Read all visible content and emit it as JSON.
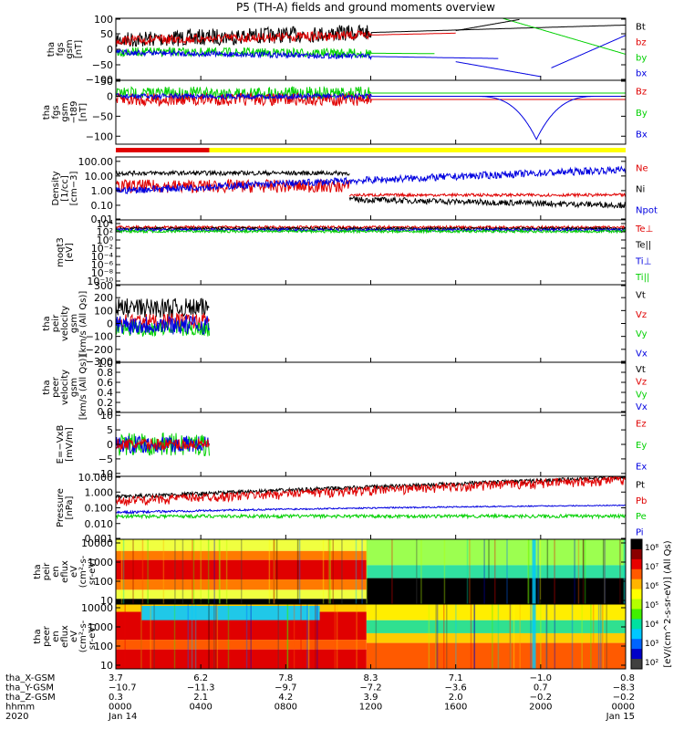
{
  "title": "P5 (TH-A) fields and ground moments overview",
  "colors": {
    "black": "#000000",
    "red": "#e00000",
    "green": "#00d000",
    "blue": "#0000e0",
    "bar_red": "#e00000",
    "bar_yellow": "#ffff00"
  },
  "chart_data": [
    {
      "type": "line",
      "panel": "fgs_gsm",
      "ylabel": [
        "tha",
        "fgs",
        "gsm",
        "[nT]"
      ],
      "ylim": [
        -100,
        100
      ],
      "yticks": [
        "100",
        "50",
        "0",
        "−50",
        "−100"
      ],
      "ytick_values": [
        100,
        50,
        0,
        -50,
        -100
      ],
      "legend": [
        {
          "label": "Bt",
          "color": "black"
        },
        {
          "label": "bz",
          "color": "red"
        },
        {
          "label": "by",
          "color": "green"
        },
        {
          "label": "bx",
          "color": "blue"
        }
      ]
    },
    {
      "type": "line",
      "panel": "fgs_gsm_d",
      "ylabel": [
        "tha",
        "fgs",
        "gsm",
        "−t89",
        "[nT]"
      ],
      "ylim": [
        -120,
        40
      ],
      "yticks": [
        "50",
        "0",
        "−50",
        "−100"
      ],
      "ytick_values": [
        50,
        0,
        -50,
        -100
      ],
      "legend": [
        {
          "label": "Bz",
          "color": "red"
        },
        {
          "label": "By",
          "color": "green"
        },
        {
          "label": "Bx",
          "color": "blue"
        }
      ]
    },
    {
      "type": "line",
      "panel": "density",
      "ylabel": [
        "Density",
        "[1/cc]",
        "[cm−3]"
      ],
      "yscale": "log",
      "ylim": [
        0.01,
        200
      ],
      "yticks": [
        "100.00",
        "10.00",
        "1.00",
        "0.10",
        "0.01"
      ],
      "ytick_values": [
        100,
        10,
        1,
        0.1,
        0.01
      ],
      "legend": [
        {
          "label": "Ne",
          "color": "red"
        },
        {
          "label": "Ni",
          "color": "black"
        },
        {
          "label": "Npot",
          "color": "blue"
        }
      ]
    },
    {
      "type": "line",
      "panel": "temperature",
      "ylabel": [
        "moqt3",
        "[eV]"
      ],
      "yscale": "log",
      "yticks": [
        "10⁴",
        "10²",
        "10⁰",
        "10⁻²",
        "10⁻⁴",
        "10⁻⁶",
        "10⁻⁸",
        "10⁻¹⁰"
      ],
      "legend": [
        {
          "label": "Te⊥",
          "color": "red"
        },
        {
          "label": "Te||",
          "color": "black"
        },
        {
          "label": "Ti⊥",
          "color": "blue"
        },
        {
          "label": "Ti||",
          "color": "green"
        }
      ]
    },
    {
      "type": "line",
      "panel": "peir_velocity",
      "ylabel": [
        "tha",
        "peir",
        "velocity",
        "gsm",
        "[km/s (All Qs)]"
      ],
      "ylim": [
        -300,
        300
      ],
      "yticks": [
        "300",
        "200",
        "100",
        "0",
        "−100",
        "−200",
        "−300"
      ],
      "ytick_values": [
        300,
        200,
        100,
        0,
        -100,
        -200,
        -300
      ],
      "legend": [
        {
          "label": "Vt",
          "color": "black"
        },
        {
          "label": "Vz",
          "color": "red"
        },
        {
          "label": "Vy",
          "color": "green"
        },
        {
          "label": "Vx",
          "color": "blue"
        }
      ]
    },
    {
      "type": "line",
      "panel": "peer_velocity",
      "ylabel": [
        "tha",
        "peer",
        "velocity",
        "gsm",
        "[km/s (All Qs)]"
      ],
      "ylim": [
        0,
        1
      ],
      "yticks": [
        "1.0",
        "0.8",
        "0.6",
        "0.4",
        "0.2",
        "0.0"
      ],
      "ytick_values": [
        1,
        0.8,
        0.6,
        0.4,
        0.2,
        0
      ],
      "legend": [
        {
          "label": "Vt",
          "color": "black"
        },
        {
          "label": "Vz",
          "color": "red"
        },
        {
          "label": "Vy",
          "color": "green"
        },
        {
          "label": "Vx",
          "color": "blue"
        }
      ]
    },
    {
      "type": "line",
      "panel": "efield",
      "ylabel": [
        "E=−VxB",
        "[mV/m]"
      ],
      "ylim": [
        -11,
        11
      ],
      "yticks": [
        "10",
        "5",
        "0",
        "−5",
        "−10"
      ],
      "ytick_values": [
        10,
        5,
        0,
        -5,
        -10
      ],
      "legend": [
        {
          "label": "Ez",
          "color": "red"
        },
        {
          "label": "Ey",
          "color": "green"
        },
        {
          "label": "Ex",
          "color": "blue"
        }
      ]
    },
    {
      "type": "line",
      "panel": "pressure",
      "ylabel": [
        "Pressure",
        "[nPa]"
      ],
      "yscale": "log",
      "ylim": [
        0.001,
        10
      ],
      "yticks": [
        "10.000",
        "1.000",
        "0.100",
        "0.010",
        "0.001"
      ],
      "ytick_values": [
        10,
        1,
        0.1,
        0.01,
        0.001
      ],
      "legend": [
        {
          "label": "Pt",
          "color": "black"
        },
        {
          "label": "Pb",
          "color": "red"
        },
        {
          "label": "Pe",
          "color": "green"
        },
        {
          "label": "Pi",
          "color": "blue"
        }
      ]
    },
    {
      "type": "heatmap",
      "panel": "peir_spectrogram",
      "ylabel": [
        "tha",
        "peir",
        "en",
        "eflux",
        "eV",
        "(cm²-s-",
        "sr-eV)"
      ],
      "yscale": "log",
      "yticks": [
        "10000",
        "1000",
        "100",
        "10"
      ],
      "ytick_values": [
        10000,
        1000,
        100,
        10
      ]
    },
    {
      "type": "heatmap",
      "panel": "peer_spectrogram",
      "ylabel": [
        "tha",
        "peer",
        "en",
        "eflux",
        "eV",
        "(cm²-s-",
        "sr-eV)"
      ],
      "yscale": "log",
      "yticks": [
        "10000",
        "1000",
        "100",
        "10"
      ],
      "ytick_values": [
        10000,
        1000,
        100,
        10
      ]
    }
  ],
  "colorbar": {
    "label": "[eV/(cm^2-s-sr-eV)] (All Qs)",
    "ticks": [
      "10⁸",
      "10⁷",
      "10⁶",
      "10⁵",
      "10⁴",
      "10³",
      "10²"
    ],
    "tick_values": [
      8,
      7,
      6,
      5,
      4,
      3,
      2
    ],
    "colors": [
      "#000000",
      "#8a0000",
      "#e80000",
      "#ff5a00",
      "#ffb400",
      "#ffff00",
      "#b4ff00",
      "#40f000",
      "#00e0a0",
      "#00c8ff",
      "#0064ff",
      "#0000c8",
      "#404040"
    ]
  },
  "xaxis": {
    "rows": [
      {
        "label": "tha_X-GSM",
        "values": [
          "3.7",
          "6.2",
          "7.8",
          "8.3",
          "7.1",
          "−1.0",
          "0.8"
        ]
      },
      {
        "label": "tha_Y-GSM",
        "values": [
          "−10.7",
          "−11.3",
          "−9.7",
          "−7.2",
          "−3.6",
          "0.7",
          "−8.3"
        ]
      },
      {
        "label": "tha_Z-GSM",
        "values": [
          "0.3",
          "2.1",
          "4.2",
          "3.9",
          "2.0",
          "−0.2",
          "−0.2"
        ]
      },
      {
        "label": "hhmm",
        "values": [
          "0000",
          "0400",
          "0800",
          "1200",
          "1600",
          "2000",
          "0000"
        ]
      },
      {
        "label": "2020",
        "values": [
          "Jan 14",
          "",
          "",
          "",
          "",
          "",
          "Jan 15"
        ]
      }
    ],
    "hours": [
      0,
      4,
      8,
      12,
      16,
      20,
      24
    ]
  }
}
